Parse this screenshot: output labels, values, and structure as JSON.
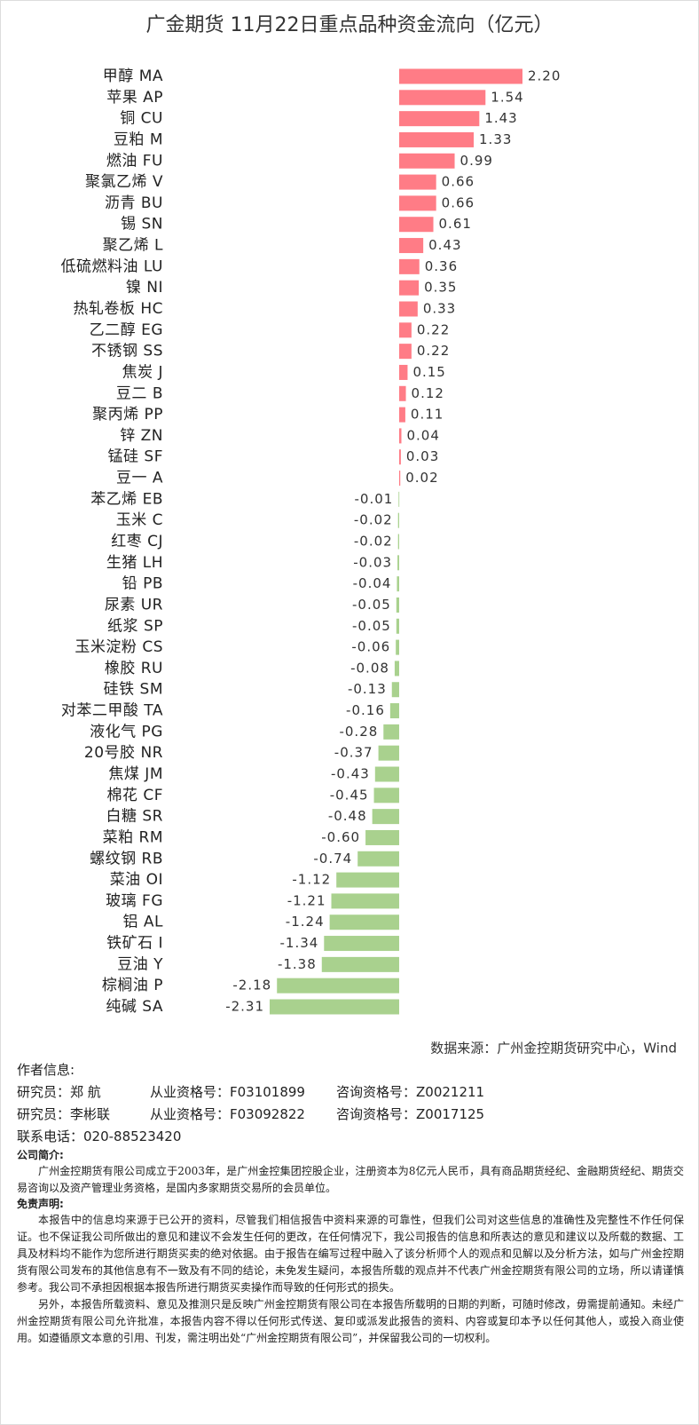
{
  "chart_data": {
    "type": "bar",
    "orientation": "horizontal",
    "title": "广金期货 11月22日重点品种资金流向（亿元）",
    "categories": [
      "甲醇 MA",
      "苹果 AP",
      "铜 CU",
      "豆粕 M",
      "燃油 FU",
      "聚氯乙烯 V",
      "沥青 BU",
      "锡 SN",
      "聚乙烯 L",
      "低硫燃料油 LU",
      "镍 NI",
      "热轧卷板 HC",
      "乙二醇 EG",
      "不锈钢 SS",
      "焦炭 J",
      "豆二 B",
      "聚丙烯 PP",
      "锌 ZN",
      "锰硅 SF",
      "豆一 A",
      "苯乙烯 EB",
      "玉米 C",
      "红枣 CJ",
      "生猪 LH",
      "铅 PB",
      "尿素 UR",
      "纸浆 SP",
      "玉米淀粉 CS",
      "橡胶 RU",
      "硅铁 SM",
      "对苯二甲酸 TA",
      "液化气 PG",
      "20号胶 NR",
      "焦煤 JM",
      "棉花 CF",
      "白糖 SR",
      "菜粕 RM",
      "螺纹钢 RB",
      "菜油 OI",
      "玻璃 FG",
      "铝 AL",
      "铁矿石 I",
      "豆油 Y",
      "棕榈油 P",
      "纯碱 SA"
    ],
    "values": [
      2.2,
      1.54,
      1.43,
      1.33,
      0.99,
      0.66,
      0.66,
      0.61,
      0.43,
      0.36,
      0.35,
      0.33,
      0.22,
      0.22,
      0.15,
      0.12,
      0.11,
      0.04,
      0.03,
      0.02,
      -0.01,
      -0.02,
      -0.02,
      -0.03,
      -0.04,
      -0.05,
      -0.05,
      -0.06,
      -0.08,
      -0.13,
      -0.16,
      -0.28,
      -0.37,
      -0.43,
      -0.45,
      -0.48,
      -0.6,
      -0.74,
      -1.12,
      -1.21,
      -1.24,
      -1.34,
      -1.38,
      -2.18,
      -2.31
    ],
    "value_labels": [
      "2.20",
      "1.54",
      "1.43",
      "1.33",
      "0.99",
      "0.66",
      "0.66",
      "0.61",
      "0.43",
      "0.36",
      "0.35",
      "0.33",
      "0.22",
      "0.22",
      "0.15",
      "0.12",
      "0.11",
      "0.04",
      "0.03",
      "0.02",
      "-0.01",
      "-0.02",
      "-0.02",
      "-0.03",
      "-0.04",
      "-0.05",
      "-0.05",
      "-0.06",
      "-0.08",
      "-0.13",
      "-0.16",
      "-0.28",
      "-0.37",
      "-0.43",
      "-0.45",
      "-0.48",
      "-0.60",
      "-0.74",
      "-1.12",
      "-1.21",
      "-1.24",
      "-1.34",
      "-1.38",
      "-2.18",
      "-2.31"
    ],
    "color": "#ff7c86",
    "negative_color": "#a9d18e"
  },
  "source": "数据来源：广州金控期货研究中心，Wind",
  "author_info": {
    "heading": "作者信息:",
    "researchers": [
      {
        "name": "研究员：郑 航",
        "license": "从业资格号：F03101899",
        "consult": "咨询资格号：Z0021211"
      },
      {
        "name": "研究员：李彬联",
        "license": "从业资格号：F03092822",
        "consult": "咨询资格号：Z0017125"
      }
    ],
    "phone": "联系电话：020-88523420"
  },
  "company": {
    "heading": "公司简介:",
    "text": "广州金控期货有限公司成立于2003年，是广州金控集团控股企业，注册资本为8亿元人民币，具有商品期货经纪、金融期货经纪、期货交易咨询以及资产管理业务资格，是国内多家期货交易所的会员单位。"
  },
  "disclaimer": {
    "heading": "免责声明:",
    "paragraphs": [
      "本报告中的信息均来源于已公开的资料，尽管我们相信报告中资料来源的可靠性，但我们公司对这些信息的准确性及完整性不作任何保证。也不保证我公司所做出的意见和建议不会发生任何的更改，在任何情况下，我公司报告的信息和所表达的意见和建议以及所载的数据、工具及材料均不能作为您所进行期货买卖的绝对依据。由于报告在编写过程中融入了该分析师个人的观点和见解以及分析方法，如与广州金控期货有限公司发布的其他信息有不一致及有不同的结论，未免发生疑问，本报告所载的观点并不代表广州金控期货有限公司的立场，所以请谨慎参考。我公司不承担因根据本报告所进行期货买卖操作而导致的任何形式的损失。",
      "另外，本报告所载资料、意见及推测只是反映广州金控期货有限公司在本报告所载明的日期的判断，可随时修改，毋需提前通知。未经广州金控期货有限公司允许批准，本报告内容不得以任何形式传送、复印或派发此报告的资料、内容或复印本予以任何其他人，或投入商业使用。如遵循原文本意的引用、刊发，需注明出处“广州金控期货有限公司”，并保留我公司的一切权利。"
    ]
  }
}
